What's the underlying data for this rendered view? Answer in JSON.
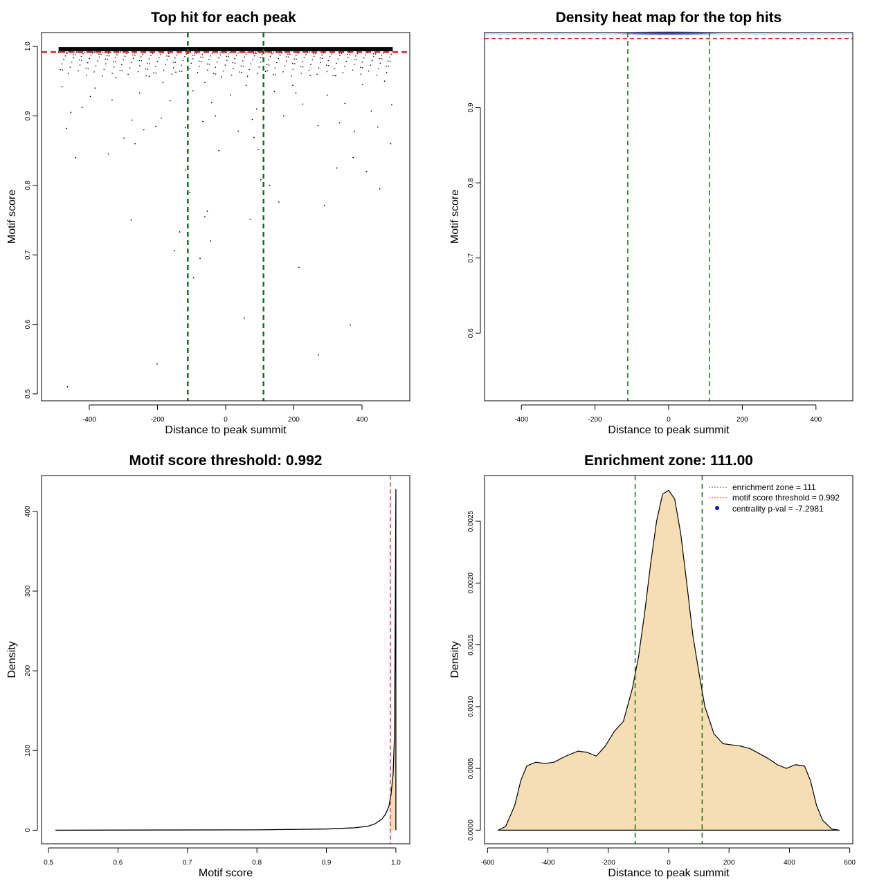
{
  "chart_data": [
    {
      "id": "p1",
      "type": "scatter",
      "title": "Top hit for each peak",
      "xlabel": "Distance to peak summit",
      "ylabel": "Motif score",
      "xlim": [
        -540,
        540
      ],
      "ylim": [
        0.49,
        1.02
      ],
      "xticks": [
        -400,
        -200,
        0,
        200,
        400
      ],
      "yticks": [
        0.5,
        0.6,
        0.7,
        0.8,
        0.9,
        1.0
      ],
      "ytick_labels": [
        "0.5",
        "0.6",
        "0.7",
        "0.8",
        "0.9",
        "1.0"
      ],
      "threshold": 0.992,
      "zone_lines": [
        -111,
        111
      ],
      "points": [
        [
          -464,
          0.51
        ],
        [
          -201,
          0.543
        ],
        [
          -277,
          0.75
        ],
        [
          -266,
          0.86
        ],
        [
          -240,
          0.88
        ],
        [
          -150,
          0.706
        ],
        [
          -135,
          0.733
        ],
        [
          -118,
          0.822
        ],
        [
          -105,
          0.79
        ],
        [
          -94,
          0.667
        ],
        [
          -75,
          0.695
        ],
        [
          -61,
          0.755
        ],
        [
          -54,
          0.763
        ],
        [
          -44,
          0.72
        ],
        [
          -30,
          0.9
        ],
        [
          -20,
          0.85
        ],
        [
          55,
          0.609
        ],
        [
          72,
          0.751
        ],
        [
          83,
          0.869
        ],
        [
          95,
          0.852
        ],
        [
          103,
          0.808
        ],
        [
          129,
          0.8
        ],
        [
          156,
          0.776
        ],
        [
          215,
          0.682
        ],
        [
          272,
          0.556
        ],
        [
          290,
          0.771
        ],
        [
          326,
          0.825
        ],
        [
          366,
          0.599
        ],
        [
          374,
          0.84
        ],
        [
          413,
          0.82
        ],
        [
          452,
          0.795
        ],
        [
          484,
          0.86
        ],
        [
          -480,
          0.942
        ],
        [
          -454,
          0.905
        ],
        [
          -440,
          0.84
        ],
        [
          -421,
          0.912
        ],
        [
          -397,
          0.928
        ],
        [
          -383,
          0.94
        ],
        [
          -344,
          0.845
        ],
        [
          -322,
          0.955
        ],
        [
          -298,
          0.868
        ],
        [
          -275,
          0.894
        ],
        [
          -252,
          0.933
        ],
        [
          -224,
          0.957
        ],
        [
          -205,
          0.885
        ],
        [
          -184,
          0.948
        ],
        [
          -163,
          0.922
        ],
        [
          -146,
          0.963
        ],
        [
          -118,
          0.883
        ],
        [
          -96,
          0.936
        ],
        [
          -67,
          0.892
        ],
        [
          -41,
          0.919
        ],
        [
          -12,
          0.956
        ],
        [
          14,
          0.93
        ],
        [
          37,
          0.878
        ],
        [
          60,
          0.944
        ],
        [
          91,
          0.91
        ],
        [
          117,
          0.964
        ],
        [
          143,
          0.935
        ],
        [
          170,
          0.9
        ],
        [
          197,
          0.944
        ],
        [
          226,
          0.917
        ],
        [
          248,
          0.958
        ],
        [
          271,
          0.886
        ],
        [
          298,
          0.93
        ],
        [
          323,
          0.958
        ],
        [
          350,
          0.918
        ],
        [
          378,
          0.878
        ],
        [
          402,
          0.945
        ],
        [
          427,
          0.907
        ],
        [
          446,
          0.884
        ],
        [
          466,
          0.95
        ],
        [
          487,
          0.916
        ],
        [
          -467,
          0.882
        ],
        [
          -333,
          0.923
        ],
        [
          -189,
          0.897
        ],
        [
          -61,
          0.948
        ],
        [
          78,
          0.895
        ],
        [
          206,
          0.933
        ],
        [
          334,
          0.89
        ]
      ]
    },
    {
      "id": "p2",
      "type": "heatmap",
      "title": "Density heat map for the top hits",
      "xlabel": "Distance to peak summit",
      "ylabel": "Motif score",
      "xlim": [
        -500,
        500
      ],
      "ylim": [
        0.51,
        1.0
      ],
      "xticks": [
        -400,
        -200,
        0,
        200,
        400
      ],
      "yticks": [
        0.6,
        0.7,
        0.8,
        0.9
      ],
      "ytick_labels": [
        "0.6",
        "0.7",
        "0.8",
        "0.9"
      ],
      "threshold": 0.992,
      "zone_lines": [
        -111,
        111
      ],
      "hot_band": [
        0.997,
        1.0
      ],
      "color": "#3a3ad8"
    },
    {
      "id": "p3",
      "type": "area",
      "title": "Motif score threshold: 0.992",
      "xlabel": "Motif score",
      "ylabel": "Density",
      "xlim": [
        0.49,
        1.02
      ],
      "ylim": [
        -17,
        445
      ],
      "xticks": [
        0.5,
        0.6,
        0.7,
        0.8,
        0.9,
        1.0
      ],
      "xtick_labels": [
        "0.5",
        "0.6",
        "0.7",
        "0.8",
        "0.9",
        "1.0"
      ],
      "yticks": [
        0,
        100,
        200,
        300,
        400
      ],
      "threshold": 0.992,
      "x": [
        0.51,
        0.8,
        0.9,
        0.94,
        0.96,
        0.97,
        0.975,
        0.98,
        0.985,
        0.99,
        0.993,
        0.996,
        0.998,
        0.999,
        1.0,
        1.0
      ],
      "y": [
        0,
        0.5,
        1.5,
        3,
        5,
        8,
        11,
        14,
        20,
        30,
        45,
        70,
        120,
        250,
        428,
        0
      ]
    },
    {
      "id": "p4",
      "type": "area",
      "title": "Enrichment zone: 111.00",
      "xlabel": "Distance to peak summit",
      "ylabel": "Density",
      "xlim": [
        -610,
        610
      ],
      "ylim": [
        -0.00011,
        0.00287
      ],
      "xticks": [
        -600,
        -400,
        -200,
        0,
        200,
        400,
        600
      ],
      "yticks": [
        0,
        0.0005,
        0.001,
        0.0015,
        0.002,
        0.0025
      ],
      "ytick_labels": [
        "0.0000",
        "0.0005",
        "0.0010",
        "0.0015",
        "0.0020",
        "0.0025"
      ],
      "zone_lines": [
        -111,
        111
      ],
      "x": [
        -565,
        -540,
        -510,
        -490,
        -470,
        -440,
        -410,
        -380,
        -340,
        -300,
        -270,
        -240,
        -210,
        -180,
        -150,
        -120,
        -100,
        -80,
        -60,
        -40,
        -20,
        0,
        20,
        40,
        60,
        80,
        100,
        120,
        150,
        180,
        210,
        240,
        270,
        300,
        330,
        360,
        390,
        420,
        450,
        470,
        490,
        510,
        540,
        565
      ],
      "y": [
        0.0,
        3e-05,
        0.0002,
        0.0004,
        0.00052,
        0.00055,
        0.00054,
        0.00055,
        0.0006,
        0.00064,
        0.00063,
        0.0006,
        0.00068,
        0.0008,
        0.00088,
        0.00115,
        0.0014,
        0.00175,
        0.00215,
        0.0025,
        0.00272,
        0.00275,
        0.00268,
        0.0024,
        0.002,
        0.00158,
        0.00128,
        0.001,
        0.00078,
        0.0007,
        0.00069,
        0.00068,
        0.00066,
        0.00062,
        0.00058,
        0.00053,
        0.0005,
        0.00053,
        0.00052,
        0.0004,
        0.0002,
        8e-05,
        1e-05,
        0.0
      ],
      "legend": [
        {
          "label": "enrichment zone = 111",
          "style": "dotted",
          "color": "#1a7a1a"
        },
        {
          "label": "motif score threshold = 0.992",
          "style": "dotted",
          "color": "#dd2222"
        },
        {
          "label": "centrality p-val = -7.2981",
          "style": "point",
          "color": "#1010dd"
        }
      ]
    }
  ],
  "colors": {
    "zone": "#137013",
    "threshold": "#dd2222",
    "fill": "#f5deb3",
    "axis": "#000000"
  }
}
